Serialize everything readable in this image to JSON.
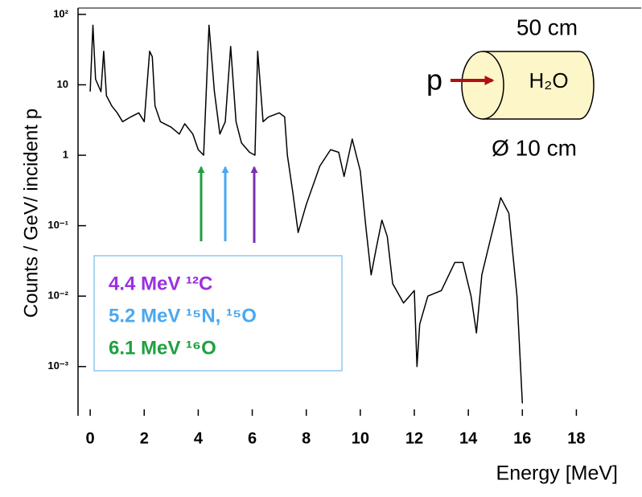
{
  "chart_data": {
    "type": "line",
    "y_label": "Counts / GeV/ incident p",
    "x_label": "Energy  [MeV]",
    "log_y": true,
    "color": "#000000",
    "x": [
      0.0,
      0.1,
      0.2,
      0.4,
      0.5,
      0.6,
      0.8,
      1.0,
      1.2,
      1.5,
      1.8,
      2.0,
      2.2,
      2.3,
      2.4,
      2.6,
      3.0,
      3.3,
      3.5,
      3.8,
      4.0,
      4.2,
      4.4,
      4.6,
      4.8,
      5.0,
      5.2,
      5.4,
      5.6,
      5.9,
      6.1,
      6.2,
      6.4,
      6.6,
      7.0,
      7.2,
      7.3,
      7.5,
      7.7,
      8.0,
      8.5,
      8.9,
      9.2,
      9.4,
      9.7,
      10.0,
      10.2,
      10.4,
      10.6,
      10.8,
      11.0,
      11.2,
      11.6,
      12.0,
      12.1,
      12.2,
      12.5,
      13.0,
      13.5,
      13.8,
      14.1,
      14.3,
      14.5,
      14.8,
      15.2,
      15.5,
      15.8,
      16.0
    ],
    "values": [
      8,
      70,
      12,
      8,
      30,
      7,
      5,
      4,
      3,
      3.5,
      4,
      3,
      30,
      25,
      5,
      3,
      2.5,
      2,
      2.8,
      2,
      1.2,
      1.0,
      70,
      8,
      2,
      3,
      35,
      3,
      1.5,
      1.1,
      1.0,
      30,
      3,
      3.5,
      4,
      3.5,
      1.0,
      0.3,
      0.08,
      0.2,
      0.7,
      1.2,
      1.1,
      0.5,
      1.7,
      0.6,
      0.1,
      0.02,
      0.05,
      0.12,
      0.07,
      0.015,
      0.008,
      0.012,
      0.001,
      0.004,
      0.01,
      0.012,
      0.03,
      0.03,
      0.01,
      0.003,
      0.02,
      0.06,
      0.25,
      0.15,
      0.01,
      0.0003
    ],
    "xlim": [
      -0.45,
      20.4
    ],
    "ylim": [
      0.0002,
      123
    ],
    "xticks": [
      0,
      2,
      4,
      6,
      8,
      10,
      12,
      14,
      16,
      18
    ],
    "yticks": [
      {
        "value": 100,
        "label": "10²"
      },
      10,
      1,
      {
        "value": 0.1,
        "label": "10⁻¹"
      },
      {
        "value": 0.01,
        "label": "10⁻²"
      },
      {
        "value": 0.001,
        "label": "10⁻³"
      }
    ],
    "legend_lines": [
      "4.4 MeV ¹²C",
      "5.2 MeV ¹⁵N, ¹⁵O",
      "6.1 MeV ¹⁶O"
    ],
    "legend_colors": [
      "#9b30e0",
      "#4aa8f0",
      "#1fa040"
    ],
    "inset": {
      "length": "50 cm",
      "beam": "p",
      "medium": "H₂O",
      "diameter": "Ø 10 cm"
    }
  }
}
